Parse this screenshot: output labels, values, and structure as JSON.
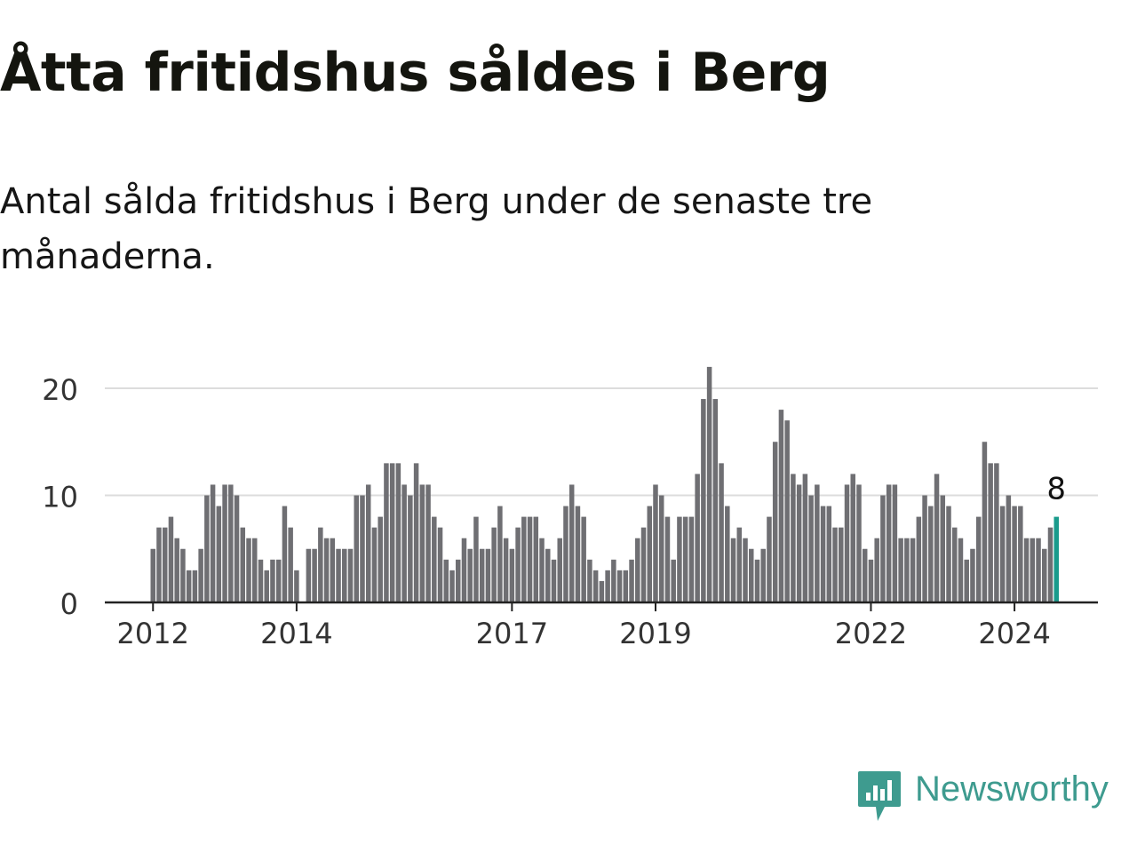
{
  "header": {
    "title": "Åtta fritidshus såldes i Berg",
    "subtitle": "Antal sålda fritidshus i Berg under de senaste tre månaderna."
  },
  "brand": {
    "name": "Newsworthy",
    "color": "#3e9b8f",
    "icon": "newsworthy-logo-icon"
  },
  "chart_data": {
    "type": "bar",
    "title": "Åtta fritidshus såldes i Berg",
    "subtitle": "Antal sålda fritidshus i Berg under de senaste tre månaderna.",
    "xlabel": "",
    "ylabel": "",
    "ylim": [
      0,
      22
    ],
    "yticks": [
      0,
      10,
      20
    ],
    "xticks": [
      "2012",
      "2014",
      "2017",
      "2019",
      "2022",
      "2024"
    ],
    "grid": true,
    "start": "2012-01",
    "frequency": "monthly",
    "bar_color": "#6f6f73",
    "highlight_color": "#1a9b8c",
    "annotation": {
      "text": "8",
      "index": 151
    },
    "values": [
      5,
      7,
      7,
      8,
      6,
      5,
      3,
      3,
      5,
      10,
      11,
      9,
      11,
      11,
      10,
      7,
      6,
      6,
      4,
      3,
      4,
      4,
      9,
      7,
      3,
      null,
      5,
      5,
      7,
      6,
      6,
      5,
      5,
      5,
      10,
      10,
      11,
      7,
      8,
      13,
      13,
      13,
      11,
      10,
      13,
      11,
      11,
      8,
      7,
      4,
      3,
      4,
      6,
      5,
      8,
      5,
      5,
      7,
      9,
      6,
      5,
      7,
      8,
      8,
      8,
      6,
      5,
      4,
      6,
      9,
      11,
      9,
      8,
      4,
      3,
      2,
      3,
      4,
      3,
      3,
      4,
      6,
      7,
      9,
      11,
      10,
      8,
      4,
      8,
      8,
      8,
      12,
      19,
      22,
      19,
      13,
      9,
      6,
      7,
      6,
      5,
      4,
      5,
      8,
      15,
      18,
      17,
      12,
      11,
      12,
      10,
      11,
      9,
      9,
      7,
      7,
      11,
      12,
      11,
      5,
      4,
      6,
      10,
      11,
      11,
      6,
      6,
      6,
      8,
      10,
      9,
      12,
      10,
      9,
      7,
      6,
      4,
      5,
      8,
      15,
      13,
      13,
      9,
      10,
      9,
      9,
      6,
      6,
      6,
      5,
      7,
      8
    ]
  }
}
